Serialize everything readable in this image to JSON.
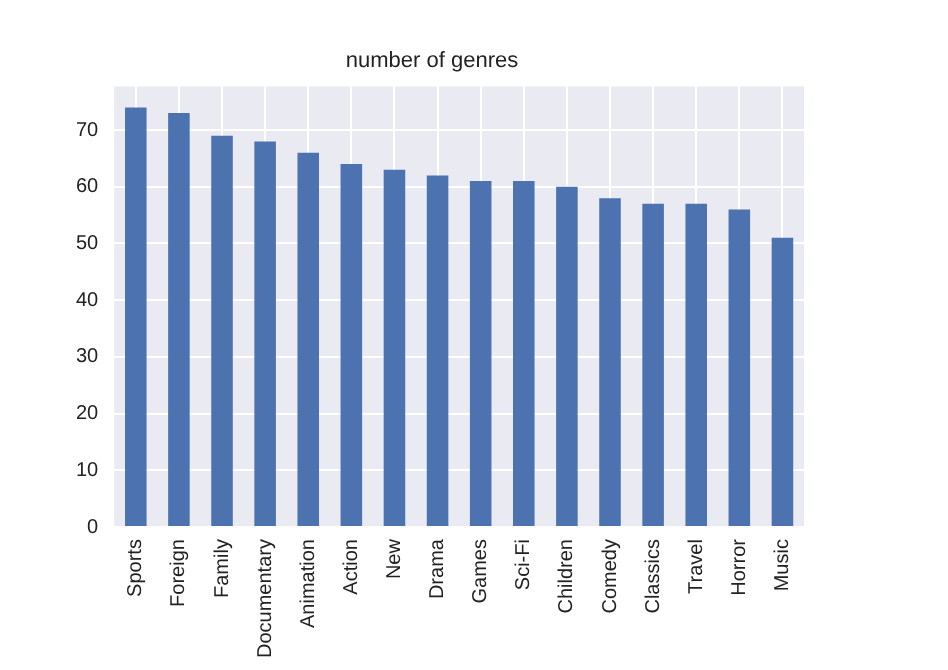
{
  "chart_data": {
    "type": "bar",
    "title": "number of genres",
    "categories": [
      "Sports",
      "Foreign",
      "Family",
      "Documentary",
      "Animation",
      "Action",
      "New",
      "Drama",
      "Games",
      "Sci-Fi",
      "Children",
      "Comedy",
      "Classics",
      "Travel",
      "Horror",
      "Music"
    ],
    "values": [
      74,
      73,
      69,
      68,
      66,
      64,
      63,
      62,
      61,
      61,
      60,
      58,
      57,
      57,
      56,
      51
    ],
    "color": "#4c72b0",
    "ylim": [
      0,
      77.7
    ],
    "yticks": [
      0,
      10,
      20,
      30,
      40,
      50,
      60,
      70
    ],
    "grid": true
  }
}
